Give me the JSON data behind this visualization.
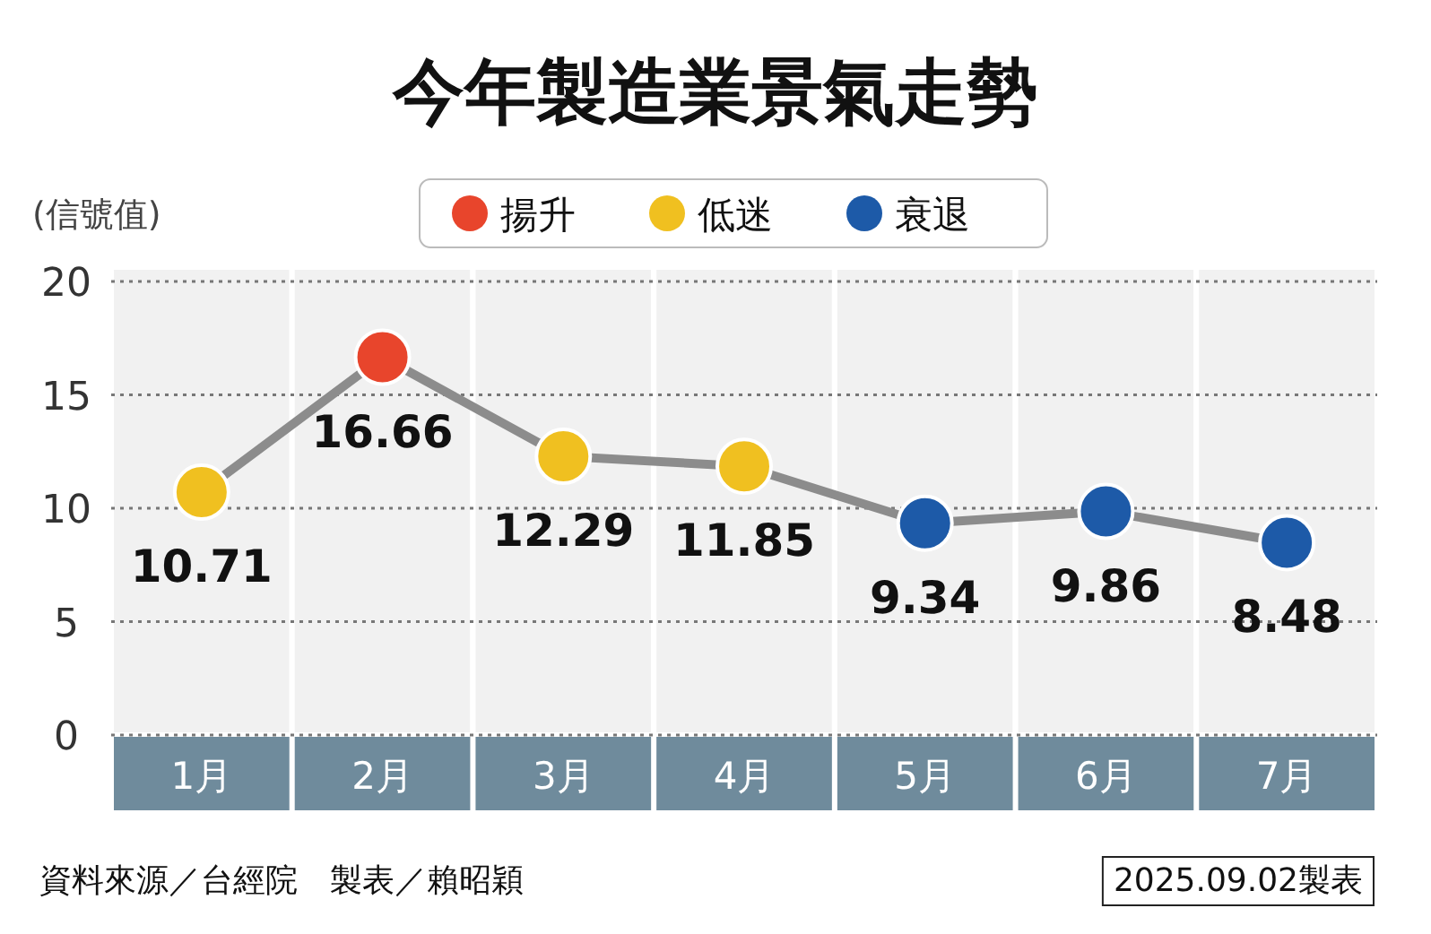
{
  "chart_data": {
    "type": "line",
    "title": "今年製造業景氣走勢",
    "ylabel": "(信號值)",
    "categories": [
      "1月",
      "2月",
      "3月",
      "4月",
      "5月",
      "6月",
      "7月"
    ],
    "series": [
      {
        "color": "#8c8c8c",
        "values": [
          10.71,
          16.66,
          12.29,
          11.85,
          9.34,
          9.86,
          8.48
        ],
        "data_labels": true
      },
      {
        "type": "scatter",
        "name": "揚升",
        "color": "#e8452c",
        "x": [
          "2月"
        ],
        "values": [
          16.66
        ],
        "marker": "circle"
      },
      {
        "type": "scatter",
        "name": "低迷",
        "color": "#f0c020",
        "x": [
          "1月",
          "3月",
          "4月"
        ],
        "values": [
          10.71,
          12.29,
          11.85
        ],
        "marker": "circle"
      },
      {
        "type": "scatter",
        "name": "衰退",
        "color": "#1d5aa8",
        "x": [
          "5月",
          "6月",
          "7月"
        ],
        "values": [
          9.34,
          9.86,
          8.48
        ],
        "marker": "circle"
      }
    ],
    "ylim": [
      0,
      20
    ],
    "yticks": [
      0,
      5,
      10,
      15,
      20
    ],
    "grid": "y",
    "legend": "top",
    "annotations": [
      "資料來源／台經院　製表／賴昭穎",
      "2025.09.02製表"
    ]
  }
}
